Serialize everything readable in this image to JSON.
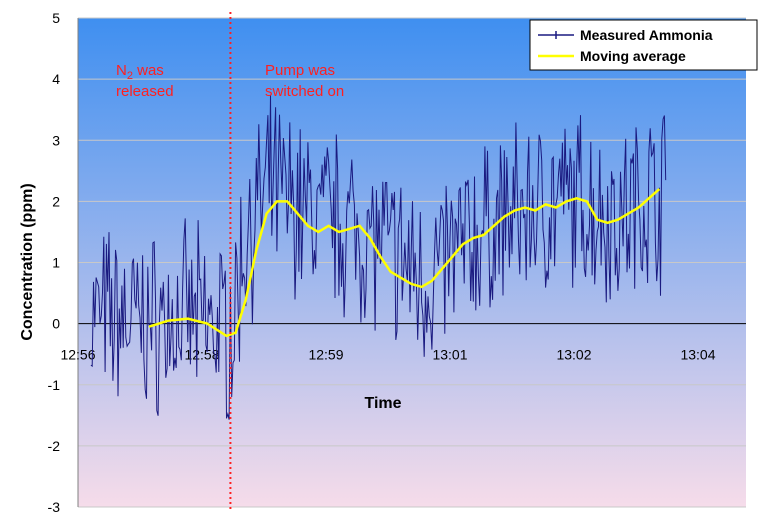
{
  "chart_data": {
    "type": "line",
    "title": "",
    "xlabel": "Time",
    "ylabel": "Concentration (ppm)",
    "ylim": [
      -3,
      5
    ],
    "yticks": [
      "5",
      "4",
      "3",
      "2",
      "1",
      "0",
      "-1",
      "-2",
      "-3"
    ],
    "xticks": [
      "12:56",
      "12:58",
      "12:59",
      "13:01",
      "13:02",
      "13:04"
    ],
    "grid": "horizontal",
    "legend_position": "top-right",
    "colors": {
      "measured": "#1a1a80",
      "moving_average": "#ffff00",
      "annotation": "#ff2020",
      "bg_top": "#3f8ff0",
      "bg_bottom": "#f6dcea"
    },
    "annotations": {
      "n2_main": "N",
      "n2_sub": "2",
      "n2_rest": " was",
      "n2_line2": "released",
      "pump_line1": "Pump was",
      "pump_line2": "switched on"
    },
    "series": [
      {
        "name": "Measured Ammonia",
        "note": "noisy measured signal",
        "x": [
          "12:56:30",
          "12:57:00",
          "12:57:20",
          "12:57:40",
          "12:58:00",
          "12:58:10",
          "12:58:30",
          "12:59:00",
          "12:59:30",
          "13:00:00",
          "13:00:30",
          "13:01:00",
          "13:01:30",
          "13:02:00",
          "13:02:30",
          "13:03:00",
          "13:03:20"
        ],
        "values": [
          0.1,
          0.0,
          0.1,
          0.0,
          -0.1,
          1.5,
          2.2,
          1.8,
          1.6,
          1.2,
          0.7,
          1.3,
          1.7,
          1.9,
          2.0,
          1.7,
          2.1
        ]
      },
      {
        "name": "Moving average",
        "x": [
          "12:56:55",
          "12:57:10",
          "12:57:25",
          "12:57:40",
          "12:57:55",
          "12:58:02",
          "12:58:10",
          "12:58:18",
          "12:58:26",
          "12:58:34",
          "12:58:42",
          "12:58:50",
          "12:58:58",
          "12:59:06",
          "12:59:14",
          "12:59:22",
          "12:59:30",
          "12:59:38",
          "12:59:46",
          "12:59:54",
          "13:00:02",
          "13:00:10",
          "13:00:18",
          "13:00:26",
          "13:00:34",
          "13:00:42",
          "13:00:50",
          "13:00:58",
          "13:01:06",
          "13:01:14",
          "13:01:22",
          "13:01:30",
          "13:01:38",
          "13:01:46",
          "13:01:54",
          "13:02:02",
          "13:02:10",
          "13:02:18",
          "13:02:26",
          "13:02:34",
          "13:02:42",
          "13:02:50",
          "13:02:58",
          "13:03:06",
          "13:03:14",
          "13:03:22",
          "13:03:30"
        ],
        "values": [
          -0.05,
          0.05,
          0.08,
          0.0,
          -0.2,
          -0.15,
          0.4,
          1.2,
          1.8,
          2.0,
          2.0,
          1.8,
          1.6,
          1.5,
          1.6,
          1.5,
          1.55,
          1.6,
          1.4,
          1.1,
          0.85,
          0.75,
          0.65,
          0.6,
          0.7,
          0.9,
          1.1,
          1.3,
          1.4,
          1.45,
          1.6,
          1.75,
          1.85,
          1.9,
          1.85,
          1.95,
          1.9,
          2.0,
          2.05,
          2.0,
          1.7,
          1.65,
          1.7,
          1.8,
          1.9,
          2.05,
          2.2
        ]
      }
    ],
    "events": [
      {
        "x": "12:57:58",
        "style": "dotted-vertical"
      }
    ]
  }
}
